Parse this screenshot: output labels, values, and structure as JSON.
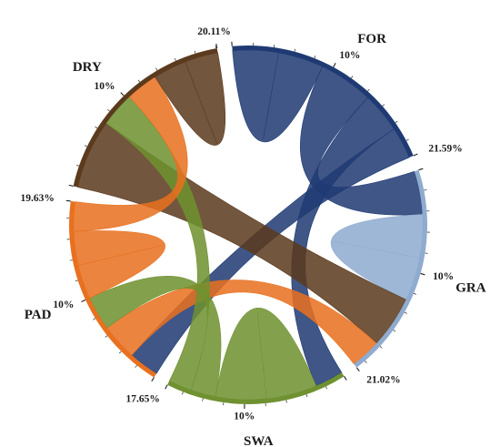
{
  "chart_data": {
    "type": "chord",
    "groups": [
      {
        "id": "FOR",
        "name": "FOR",
        "color": "#1f3a73",
        "percent_label": "21.59%",
        "mid_label": "10%"
      },
      {
        "id": "GRA",
        "name": "GRA",
        "color": "#8fabcf",
        "percent_label": "21.02%",
        "mid_label": "10%"
      },
      {
        "id": "SWA",
        "name": "SWA",
        "color": "#6f9130",
        "percent_label": "17.65%",
        "mid_label": "10%"
      },
      {
        "id": "PAD",
        "name": "PAD",
        "color": "#e8701f",
        "percent_label": "19.63%",
        "mid_label": "10%"
      },
      {
        "id": "DRY",
        "name": "DRY",
        "color": "#5b3a1d",
        "percent_label": "20.11%",
        "mid_label": "10%"
      }
    ],
    "group_shares_percent": [
      21.59,
      21.02,
      17.65,
      19.63,
      20.11
    ],
    "flows": [
      {
        "source": "FOR",
        "target": "FOR",
        "value": 3.6
      },
      {
        "source": "FOR",
        "target": "GRA",
        "value": 4.3
      },
      {
        "source": "FOR",
        "target": "SWA",
        "value": 3.2
      },
      {
        "source": "FOR",
        "target": "PAD",
        "value": 2.5
      },
      {
        "source": "GRA",
        "target": "GRA",
        "value": 4.3
      },
      {
        "source": "DRY",
        "target": "GRA",
        "value": 5.2
      },
      {
        "source": "PAD",
        "target": "GRA",
        "value": 3.0
      },
      {
        "source": "SWA",
        "target": "SWA",
        "value": 5.7
      },
      {
        "source": "SWA",
        "target": "PAD",
        "value": 2.8
      },
      {
        "source": "SWA",
        "target": "DRY",
        "value": 2.6
      },
      {
        "source": "PAD",
        "target": "PAD",
        "value": 2.8
      },
      {
        "source": "PAD",
        "target": "DRY",
        "value": 2.4
      },
      {
        "source": "DRY",
        "target": "DRY",
        "value": 2.5
      }
    ],
    "title": "",
    "legend": "none",
    "grid": false
  }
}
